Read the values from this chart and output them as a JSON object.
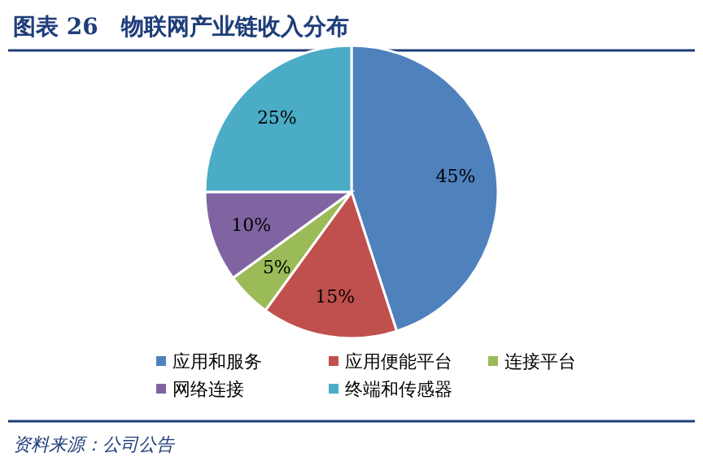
{
  "chart_data": {
    "type": "pie",
    "title": "图表 26　物联网产业链收入分布",
    "categories": [
      "应用和服务",
      "应用便能平台",
      "连接平台",
      "网络连接",
      "终端和传感器"
    ],
    "values": [
      45,
      15,
      5,
      10,
      25
    ],
    "colors": [
      "#4f81bd",
      "#c0504d",
      "#9bbb59",
      "#8064a2",
      "#4bacc6"
    ],
    "value_labels": [
      "45%",
      "15%",
      "5%",
      "10%",
      "25%"
    ],
    "legend": "bottom",
    "annotations": [
      "资料来源：公司公告"
    ]
  }
}
